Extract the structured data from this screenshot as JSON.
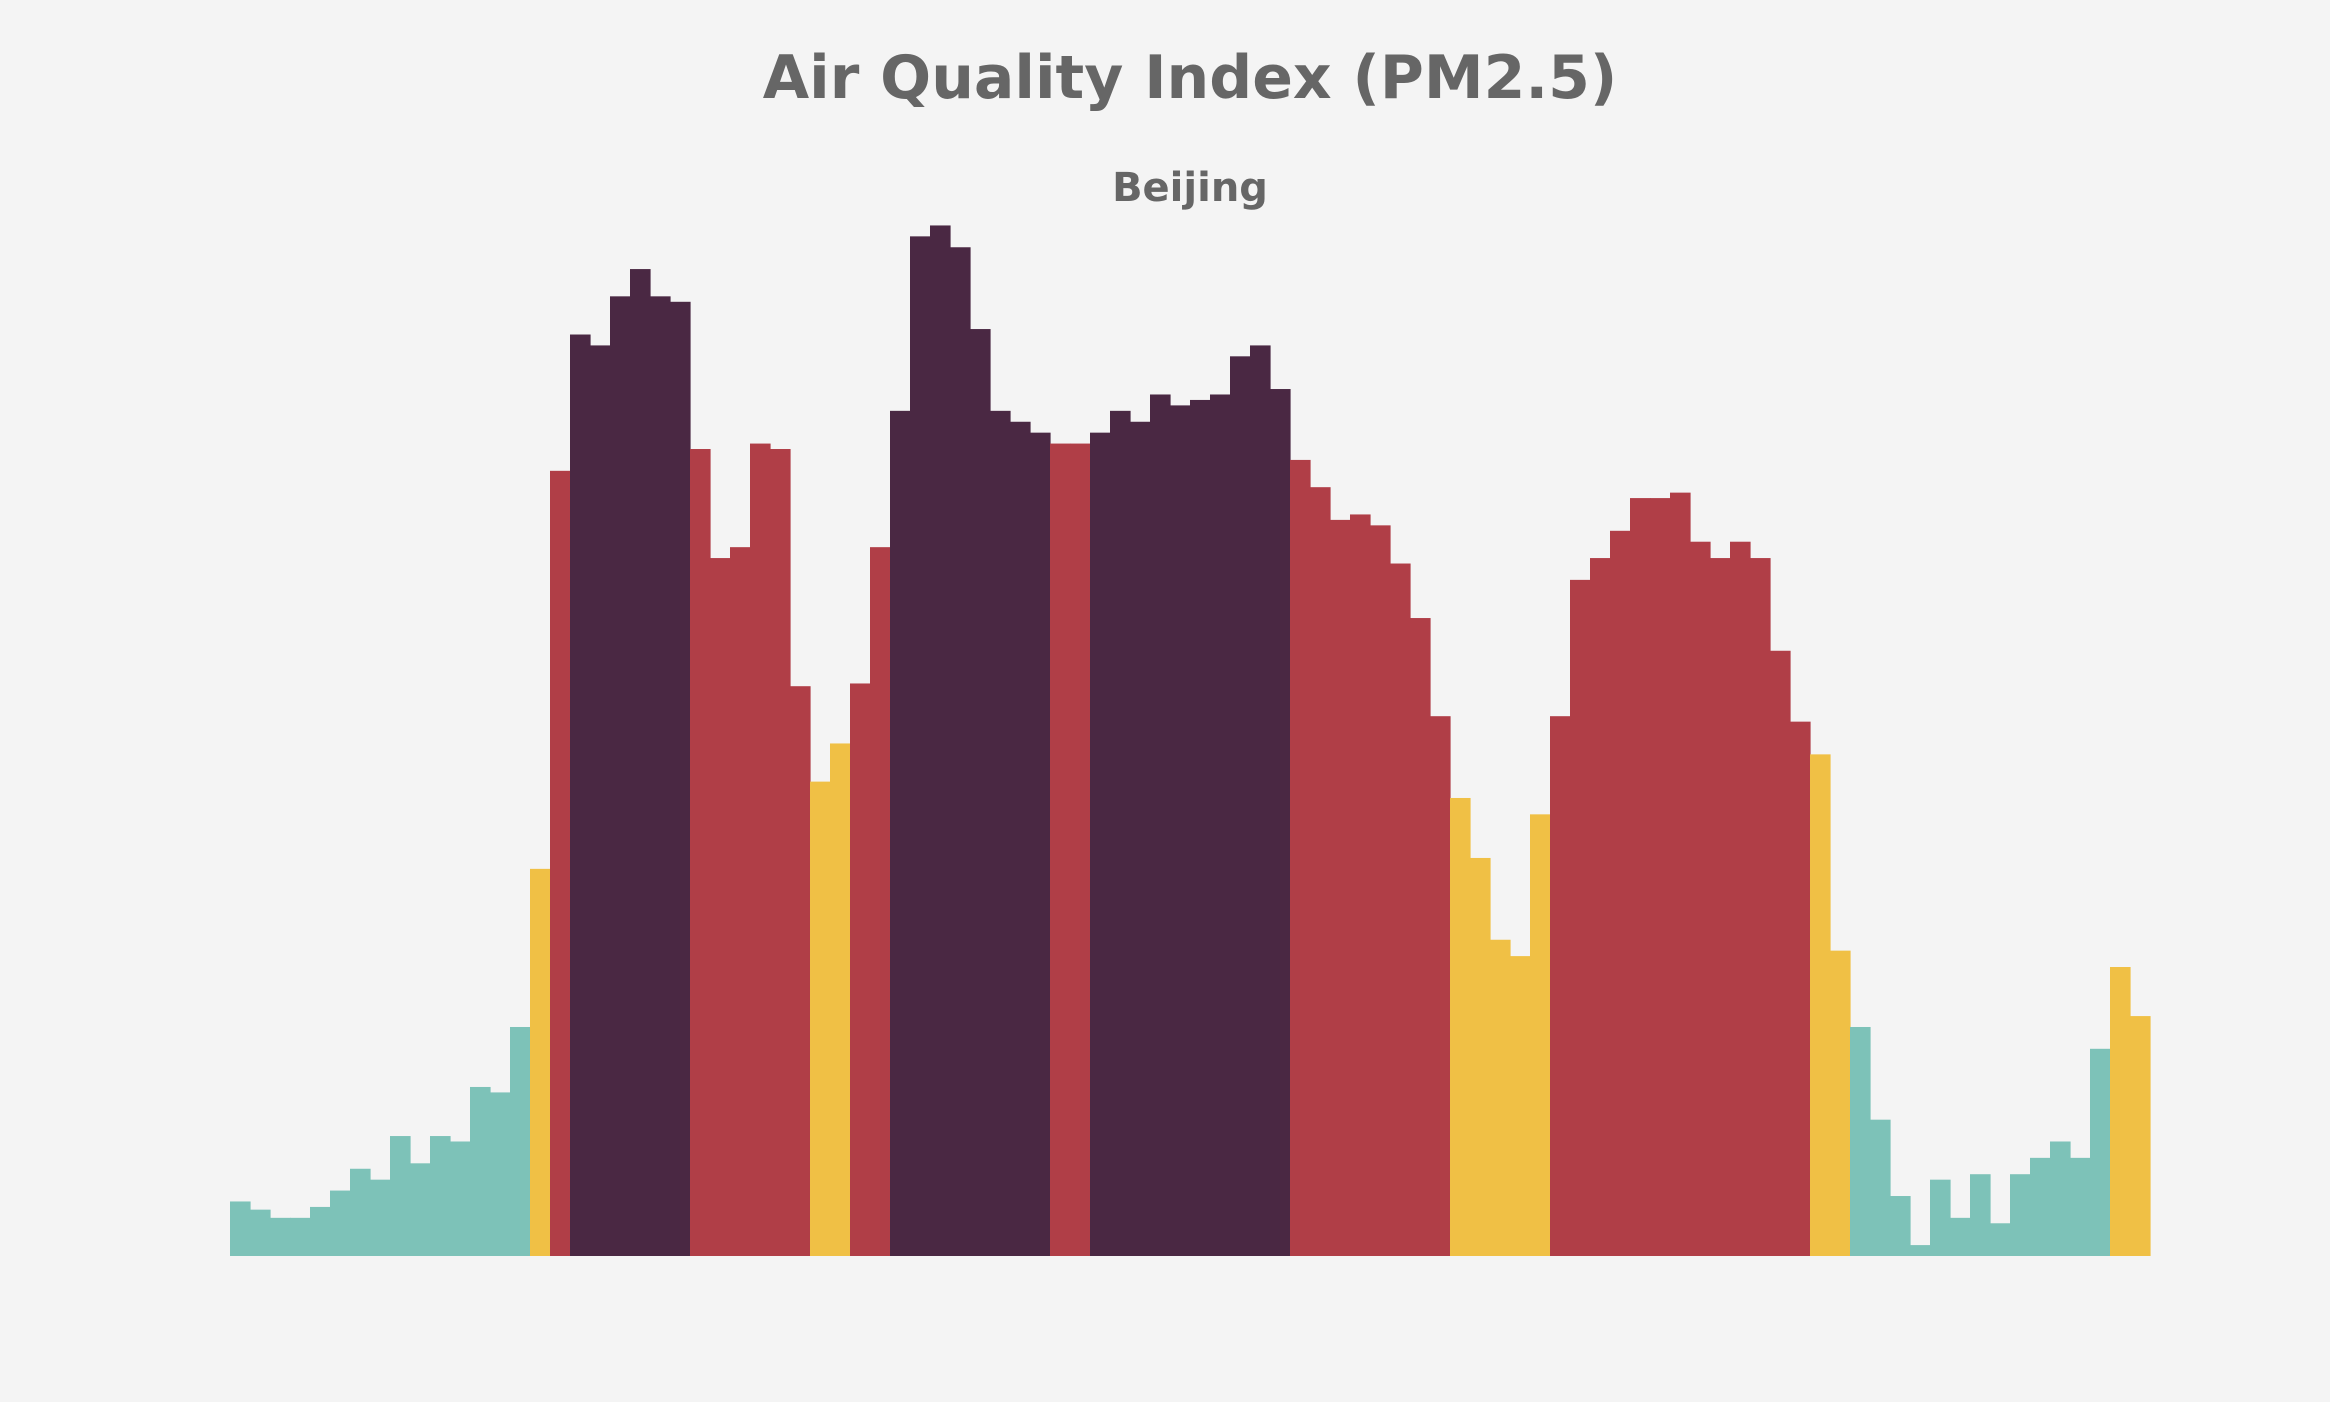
{
  "chart_data": {
    "type": "bar",
    "title": "Air Quality Index (PM2.5)",
    "subtitle": "Beijing",
    "xlabel": "",
    "ylabel": "",
    "ylim": [
      0,
      380
    ],
    "grid": false,
    "axes_visible": false,
    "categories_visible": false,
    "color_scale": [
      {
        "max": 85,
        "color": "#7dc2b8"
      },
      {
        "max": 190,
        "color": "#f0c045"
      },
      {
        "max": 300,
        "color": "#b03e47"
      },
      {
        "max": 1000,
        "color": "#4a2843"
      }
    ],
    "values": [
      20,
      17,
      14,
      14,
      18,
      24,
      32,
      28,
      44,
      34,
      44,
      42,
      62,
      60,
      84,
      142,
      288,
      338,
      334,
      352,
      362,
      352,
      350,
      296,
      256,
      260,
      298,
      296,
      209,
      174,
      188,
      210,
      260,
      310,
      374,
      378,
      370,
      340,
      310,
      306,
      302,
      298,
      298,
      302,
      310,
      306,
      316,
      312,
      314,
      316,
      330,
      334,
      318,
      292,
      282,
      270,
      272,
      268,
      254,
      234,
      198,
      168,
      146,
      116,
      110,
      162,
      198,
      248,
      256,
      266,
      278,
      278,
      280,
      262,
      256,
      262,
      256,
      222,
      196,
      184,
      112,
      84,
      50,
      22,
      4,
      28,
      14,
      30,
      12,
      30,
      36,
      42,
      36,
      76,
      106,
      88
    ]
  }
}
